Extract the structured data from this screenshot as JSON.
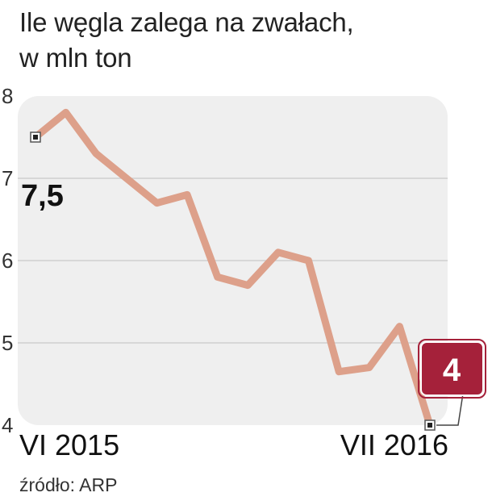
{
  "title": {
    "line1": "Ile węgla zalega na zwałach,",
    "line2": "w mln ton"
  },
  "source": "źródło: ARP",
  "colors": {
    "line": "#dda08a",
    "plot_background": "#efefef",
    "grid": "#cfcfcf",
    "badge": "#a5213a",
    "marker_fill": "#222222"
  },
  "chart_data": {
    "type": "line",
    "title": "Ile węgla zalega na zwałach, w mln ton",
    "xlabel": "",
    "ylabel": "",
    "ylim": [
      4,
      8
    ],
    "yticks": [
      "8",
      "7",
      "6",
      "5",
      "4"
    ],
    "grid": true,
    "x_tick_labels": [
      "VI 2015",
      "VII 2016"
    ],
    "series": [
      {
        "values": [
          7.5,
          7.8,
          7.3,
          7.0,
          6.7,
          6.8,
          5.8,
          5.7,
          6.1,
          6.0,
          4.65,
          4.7,
          5.2,
          4.0
        ]
      }
    ],
    "annotations": {
      "start_label": "7,5",
      "end_label": "4"
    }
  }
}
